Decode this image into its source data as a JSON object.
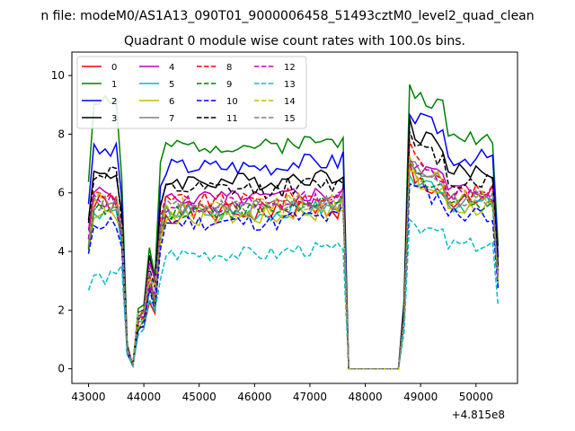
{
  "page": {
    "suptitle": "n file: modeM0/AS1A13_090T01_9000006458_51493cztM0_level2_quad_clean"
  },
  "chart_data": {
    "type": "line",
    "title": "Quadrant 0 module wise count rates with 100.0s bins.",
    "xlabel": "",
    "ylabel": "",
    "x_offset_label": "+4.815e8",
    "xlim": [
      42700,
      50750
    ],
    "ylim": [
      -0.5,
      10.8
    ],
    "x_ticks": [
      43000,
      44000,
      45000,
      46000,
      47000,
      48000,
      49000,
      50000
    ],
    "x_tick_labels": [
      "43000",
      "44000",
      "45000",
      "46000",
      "47000",
      "48000",
      "49000",
      "50000"
    ],
    "y_ticks": [
      0,
      2,
      4,
      6,
      8,
      10
    ],
    "y_tick_labels": [
      "0",
      "2",
      "4",
      "6",
      "8",
      "10"
    ],
    "grid": false,
    "legend_position": "top-left",
    "legend_columns": 4,
    "segments": {
      "x": [
        43000,
        43100,
        43200,
        43300,
        43400,
        43500,
        43600,
        43700,
        43800,
        43900,
        44000,
        44100,
        44200,
        44300,
        44400,
        44500,
        44600,
        44700,
        44800,
        44900,
        45000,
        45100,
        45200,
        45300,
        45400,
        45500,
        45600,
        45700,
        45800,
        45900,
        46000,
        46100,
        46200,
        46300,
        46400,
        46500,
        46600,
        46700,
        46800,
        46900,
        47000,
        47100,
        47200,
        47300,
        47400,
        47500,
        47600,
        47700,
        47800,
        47900,
        48000,
        48100,
        48200,
        48300,
        48400,
        48500,
        48600,
        48700,
        48800,
        48900,
        49000,
        49100,
        49200,
        49300,
        49400,
        49500,
        49600,
        49700,
        49800,
        49900,
        50000,
        50100,
        50200,
        50300,
        50400
      ]
    },
    "series": [
      {
        "name": "0",
        "color": "#ff0000",
        "dash": "solid",
        "base": 5.3,
        "amp": 0.35,
        "low": 1.3,
        "early": 0.3,
        "high": 6.5,
        "seed": 1
      },
      {
        "name": "1",
        "color": "#008000",
        "dash": "solid",
        "base": 7.6,
        "amp": 0.25,
        "low": 2.1,
        "early": 1.6,
        "high": 9.4,
        "seed": 2
      },
      {
        "name": "2",
        "color": "#0000ff",
        "dash": "solid",
        "base": 6.9,
        "amp": 0.3,
        "low": 1.6,
        "early": 0.5,
        "high": 8.6,
        "seed": 3
      },
      {
        "name": "3",
        "color": "#000000",
        "dash": "solid",
        "base": 6.4,
        "amp": 0.3,
        "low": 1.9,
        "early": 0.2,
        "high": 8.1,
        "seed": 4
      },
      {
        "name": "4",
        "color": "#bf00bf",
        "dash": "solid",
        "base": 5.8,
        "amp": 0.3,
        "low": 1.9,
        "early": 0.2,
        "high": 7.0,
        "seed": 5
      },
      {
        "name": "5",
        "color": "#00bfbf",
        "dash": "solid",
        "base": 5.3,
        "amp": 0.3,
        "low": 1.5,
        "early": 0.1,
        "high": 6.6,
        "seed": 6
      },
      {
        "name": "6",
        "color": "#bfbf00",
        "dash": "solid",
        "base": 5.2,
        "amp": 0.35,
        "low": 1.5,
        "early": 0.2,
        "high": 6.4,
        "seed": 7
      },
      {
        "name": "7",
        "color": "#808080",
        "dash": "solid",
        "base": 5.5,
        "amp": 0.3,
        "low": 1.6,
        "early": 0.1,
        "high": 6.9,
        "seed": 8
      },
      {
        "name": "8",
        "color": "#ff0000",
        "dash": "dashed",
        "base": 5.7,
        "amp": 0.3,
        "low": 1.6,
        "early": 0.2,
        "high": 7.2,
        "seed": 9
      },
      {
        "name": "9",
        "color": "#008000",
        "dash": "dashed",
        "base": 5.4,
        "amp": 0.3,
        "low": 1.5,
        "early": 0.0,
        "high": 6.7,
        "seed": 10
      },
      {
        "name": "10",
        "color": "#0000ff",
        "dash": "dashed",
        "base": 5.0,
        "amp": 0.3,
        "low": 1.3,
        "early": 0.0,
        "high": 6.2,
        "seed": 11
      },
      {
        "name": "11",
        "color": "#000000",
        "dash": "dashed",
        "base": 6.1,
        "amp": 0.3,
        "low": 1.8,
        "early": 0.6,
        "high": 7.6,
        "seed": 12
      },
      {
        "name": "12",
        "color": "#bf00bf",
        "dash": "dashed",
        "base": 5.6,
        "amp": 0.3,
        "low": 1.6,
        "early": 0.1,
        "high": 6.9,
        "seed": 13
      },
      {
        "name": "13",
        "color": "#00bfbf",
        "dash": "dashed",
        "base": 3.9,
        "amp": 0.25,
        "low": 1.2,
        "early": -0.8,
        "high": 5.0,
        "seed": 14
      },
      {
        "name": "14",
        "color": "#bfbf00",
        "dash": "dashed",
        "base": 5.5,
        "amp": 0.35,
        "low": 1.7,
        "early": 0.2,
        "high": 6.8,
        "seed": 15
      },
      {
        "name": "15",
        "color": "#808080",
        "dash": "dashed",
        "base": 5.5,
        "amp": 0.3,
        "low": 1.7,
        "early": 0.1,
        "high": 6.9,
        "seed": 16
      }
    ]
  }
}
